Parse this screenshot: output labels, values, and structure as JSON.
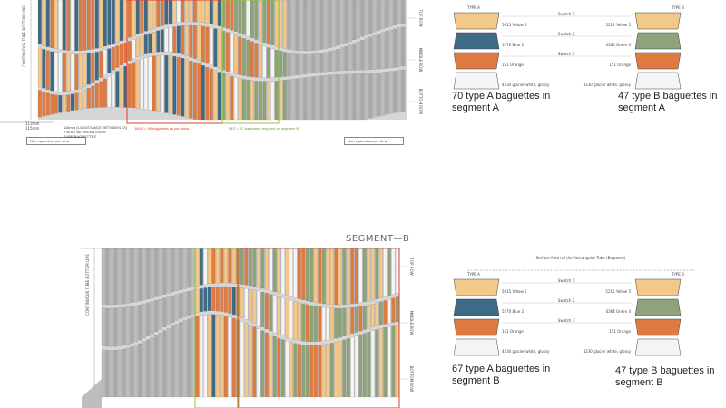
{
  "colors": {
    "yellow": "#f2c98a",
    "blue": "#3e6a86",
    "green": "#8ea37a",
    "orange": "#e07a43",
    "white": "#f4f4f4",
    "grey": "#c9c9c9",
    "red_outline": "#e03c2c",
    "green_outline": "#8cc63f"
  },
  "segment_a": {
    "left_axis_title": "CONTINUOUS TUBE BOTTOM LINE",
    "rows": [
      "TOP ROW",
      "MIDDLE ROW",
      "BOTTOM ROW"
    ],
    "dims": [
      "113mm",
      "115mm"
    ],
    "dim_note": "116mm (1/2 DISTANCE BETWEEN 2X)\n2 BOLT BETWEEN EACH\nTUBE BAGUETTES",
    "red_count": "180/2 = 90 baguettes as per stock",
    "green_count": "94/2 = 47 baguettes required on segment B",
    "note_left": "Not required as per view",
    "note_right": "Not required as per view"
  },
  "segment_b": {
    "title": "SEGMENT—B",
    "left_axis_title": "CONTINUOUS TUBE BOTTOM LINE",
    "rows": [
      "TOP ROW",
      "MIDDLE ROW",
      "BOTTOM ROW"
    ]
  },
  "legend_top": {
    "type_a": "TYPE A",
    "type_b": "TYPE B",
    "swatch_labels": [
      "Swatch 1",
      "Swatch 2",
      "Swatch 3"
    ],
    "a_colors": [
      "5015 Yellow 5",
      "5270 Blue 2",
      "151 Orange",
      "4230 glacier white, glossy"
    ],
    "b_colors": [
      "5215 Yellow 5",
      "4364 Green 4",
      "151 Orange",
      "4230 glacier white, glossy"
    ],
    "caption_a": "70 type A baguettes in segment A",
    "caption_b": "47 type B baguettes in segment A"
  },
  "legend_bottom": {
    "title": "Surface finish of the Rectangular Tube (Baguette)",
    "type_a": "TYPE A",
    "type_b": "TYPE B",
    "swatch_labels": [
      "Swatch 1",
      "Swatch 2",
      "Swatch 3"
    ],
    "a_colors": [
      "5015 Yellow 5",
      "5270 Blue 2",
      "151 Orange",
      "4230 glacier white, glossy"
    ],
    "b_colors": [
      "5215 Yellow 5",
      "4364 Green 4",
      "151 Orange",
      "4230 glacier white, glossy"
    ],
    "caption_a": "67 type A baguettes in segment B",
    "caption_b": "47 type B baguettes in segment B"
  }
}
